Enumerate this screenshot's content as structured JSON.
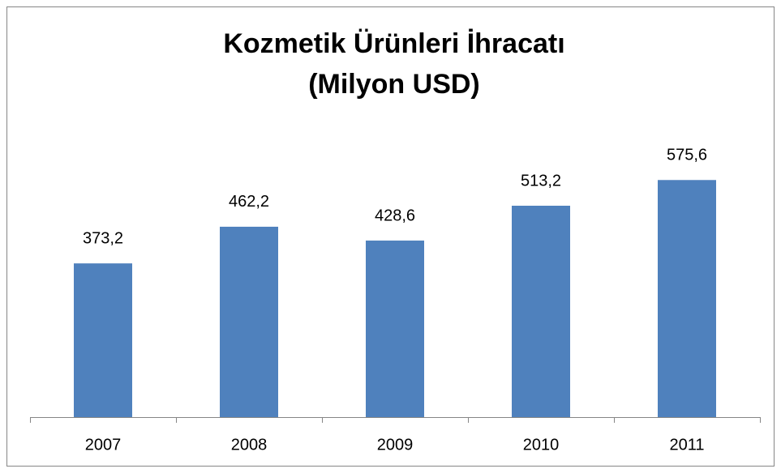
{
  "chart_data": {
    "type": "bar",
    "title": "Kozmetik Ürünleri İhracatı",
    "subtitle": "(Milyon USD)",
    "categories": [
      "2007",
      "2008",
      "2009",
      "2010",
      "2011"
    ],
    "values": [
      373.2,
      462.2,
      428.6,
      513.2,
      575.6
    ],
    "value_labels": [
      "373,2",
      "462,2",
      "428,6",
      "513,2",
      "575,6"
    ],
    "color": "#4f81bd",
    "ylim": [
      0,
      700
    ]
  }
}
